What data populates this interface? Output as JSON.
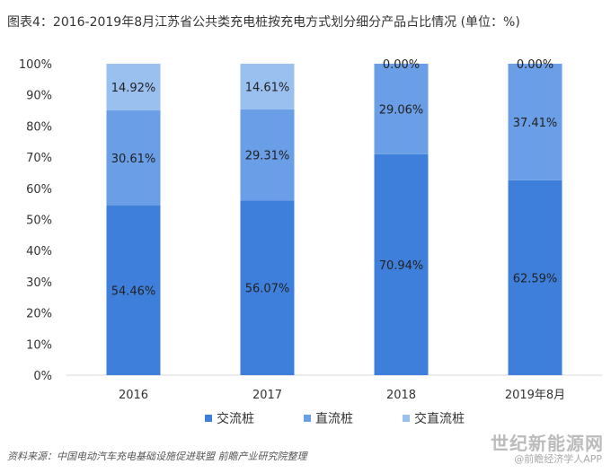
{
  "header": {
    "title": "图表4：2016-2019年8月江苏省公共类充电桩按充电方式划分细分产品占比情况 (单位：%)"
  },
  "footer": {
    "source": "资料来源：中国电动汽车充电基础设施促进联盟 前瞻产业研究院整理",
    "watermark_site": "世纪新能源网",
    "watermark_app": "@前瞻经济学人APP"
  },
  "colors": {
    "交流桩": "#3f7fdc",
    "直流桩": "#6a9ee6",
    "交直流桩": "#9ac0f0",
    "axis": "#d9d9d9",
    "text": "#333333"
  },
  "chart_data": {
    "type": "bar",
    "stacked": true,
    "categories": [
      "2016",
      "2017",
      "2018",
      "2019年8月"
    ],
    "series": [
      {
        "name": "交流桩",
        "values": [
          54.46,
          56.07,
          70.94,
          62.59
        ],
        "labels": [
          "54.46%",
          "56.07%",
          "70.94%",
          "62.59%"
        ]
      },
      {
        "name": "直流桩",
        "values": [
          30.61,
          29.31,
          29.06,
          37.41
        ],
        "labels": [
          "30.61%",
          "29.31%",
          "29.06%",
          "37.41%"
        ]
      },
      {
        "name": "交直流桩",
        "values": [
          14.92,
          14.61,
          0.0,
          0.0
        ],
        "labels": [
          "14.92%",
          "14.61%",
          "0.00%",
          "0.00%"
        ]
      }
    ],
    "ylim": [
      0,
      100
    ],
    "yticks": [
      "0%",
      "10%",
      "20%",
      "30%",
      "40%",
      "50%",
      "60%",
      "70%",
      "80%",
      "90%",
      "100%"
    ],
    "grid": false,
    "legend": "bottom"
  }
}
